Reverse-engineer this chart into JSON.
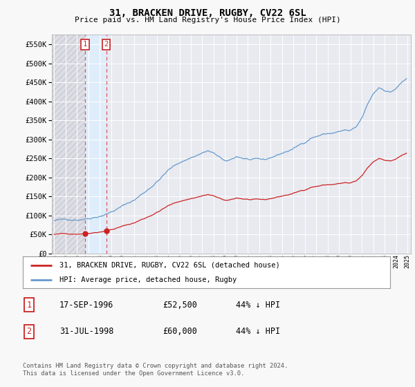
{
  "title": "31, BRACKEN DRIVE, RUGBY, CV22 6SL",
  "subtitle": "Price paid vs. HM Land Registry's House Price Index (HPI)",
  "ytick_values": [
    0,
    50000,
    100000,
    150000,
    200000,
    250000,
    300000,
    350000,
    400000,
    450000,
    500000,
    550000
  ],
  "ylim": [
    0,
    575000
  ],
  "sale_info": [
    {
      "label": "1",
      "date": "17-SEP-1996",
      "price": "£52,500",
      "hpi": "44% ↓ HPI"
    },
    {
      "label": "2",
      "date": "31-JUL-1998",
      "price": "£60,000",
      "hpi": "44% ↓ HPI"
    }
  ],
  "sale_years": [
    1996.71,
    1998.58
  ],
  "sale_prices": [
    52500,
    60000
  ],
  "legend_line1": "31, BRACKEN DRIVE, RUGBY, CV22 6SL (detached house)",
  "legend_line2": "HPI: Average price, detached house, Rugby",
  "footer": "Contains HM Land Registry data © Crown copyright and database right 2024.\nThis data is licensed under the Open Government Licence v3.0.",
  "sale_line_color": "#cc2222",
  "hpi_line_color": "#6699cc",
  "vline_color": "#dd4444",
  "hatch_bg_color": "#e8e8ee",
  "between_sale_color": "#ddeeff",
  "plot_bg_color": "#e8eaf0",
  "grid_color": "#ffffff",
  "fig_bg_color": "#f8f8f8"
}
